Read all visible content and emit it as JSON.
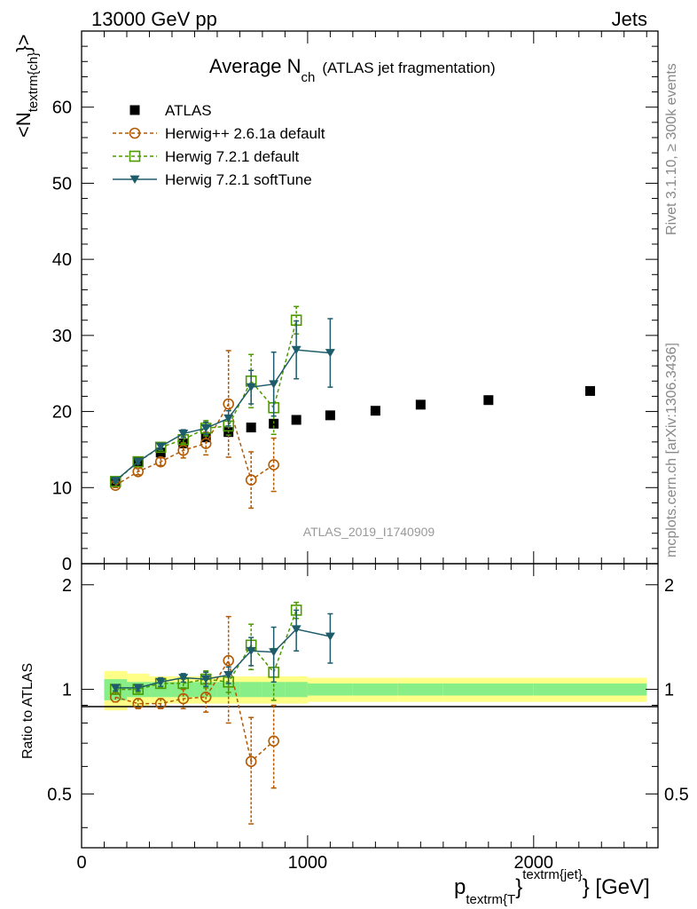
{
  "header": {
    "left": "13000 GeV pp",
    "right": "Jets",
    "rivet": "Rivet 3.1.10, ≥ 300k events",
    "mcplots": "mcplots.cern.ch [arXiv:1306.3436]",
    "analysis": "ATLAS_2019_I1740909"
  },
  "chart_data": {
    "type": "scatter",
    "title": "Average N",
    "title_sub": "ch",
    "title_extra": "(ATLAS jet fragmentation)",
    "ylabel_main_lt": "<N",
    "ylabel_main_sub": "textrm{ch}",
    "ylabel_main_gt": "}>",
    "ylabel_ratio": "Ratio to ATLAS",
    "xlabel_p": "p",
    "xlabel_sub": "textrm{T",
    "xlabel_brace": "}",
    "xlabel_sup": "textrm{jet}",
    "xlabel_unit": "} [GeV]",
    "xlim": [
      0,
      2550
    ],
    "ylim_main": [
      0,
      70
    ],
    "ylim_ratio": [
      0.35,
      2.3
    ],
    "xticks": [
      {
        "value": 0,
        "label": "0"
      },
      {
        "value": 1000,
        "label": "1000"
      },
      {
        "value": 2000,
        "label": "2000"
      }
    ],
    "yticks_main": [
      {
        "value": 0,
        "label": "0"
      },
      {
        "value": 10,
        "label": "10"
      },
      {
        "value": 20,
        "label": "20"
      },
      {
        "value": 30,
        "label": "30"
      },
      {
        "value": 40,
        "label": "40"
      },
      {
        "value": 50,
        "label": "50"
      },
      {
        "value": 60,
        "label": "60"
      }
    ],
    "yticks_ratio": [
      {
        "value": 0.5,
        "label": "0.5"
      },
      {
        "value": 1,
        "label": "1"
      },
      {
        "value": 2,
        "label": "2"
      }
    ],
    "bins": [
      [
        100,
        200
      ],
      [
        200,
        300
      ],
      [
        300,
        400
      ],
      [
        400,
        500
      ],
      [
        500,
        600
      ],
      [
        600,
        700
      ],
      [
        700,
        800
      ],
      [
        800,
        900
      ],
      [
        900,
        1000
      ],
      [
        1000,
        1200
      ],
      [
        1200,
        1400
      ],
      [
        1400,
        1600
      ],
      [
        1600,
        2000
      ],
      [
        2000,
        2500
      ]
    ],
    "band_outer": [
      0.13,
      0.11,
      0.09,
      0.09,
      0.09,
      0.09,
      0.09,
      0.09,
      0.09,
      0.08,
      0.08,
      0.08,
      0.08,
      0.08
    ],
    "band_inner": [
      0.07,
      0.05,
      0.05,
      0.05,
      0.05,
      0.05,
      0.05,
      0.05,
      0.05,
      0.04,
      0.04,
      0.04,
      0.04,
      0.04
    ],
    "series": [
      {
        "name": "ATLAS",
        "color": "#000000",
        "marker": "square-filled",
        "x": [
          150,
          250,
          350,
          450,
          550,
          650,
          750,
          850,
          950,
          1100,
          1300,
          1500,
          1800,
          2250
        ],
        "y": [
          10.8,
          13.3,
          14.6,
          15.8,
          16.6,
          17.3,
          17.9,
          18.4,
          18.9,
          19.5,
          20.1,
          20.9,
          21.5,
          22.7
        ],
        "ratio": [
          1,
          1,
          1,
          1,
          1,
          1,
          1,
          1,
          1,
          1,
          1,
          1,
          1,
          1
        ]
      },
      {
        "name": "Herwig++ 2.6.1a default",
        "color": "#b35900",
        "marker": "circle-open",
        "line": "dashed",
        "x": [
          150,
          250,
          350,
          450,
          550,
          650,
          750,
          850
        ],
        "y": [
          10.3,
          12.1,
          13.4,
          14.9,
          15.8,
          21.0,
          11.0,
          13.0
        ],
        "yerr": [
          0.3,
          0.4,
          0.5,
          1.0,
          1.5,
          7.0,
          3.7,
          3.5
        ],
        "ratio": [
          0.95,
          0.91,
          0.91,
          0.94,
          0.95,
          1.21,
          0.62,
          0.71
        ],
        "ratio_err": [
          0.03,
          0.03,
          0.03,
          0.06,
          0.09,
          0.41,
          0.21,
          0.19
        ]
      },
      {
        "name": "Herwig 7.2.1 default",
        "color": "#4d9900",
        "marker": "square-open",
        "line": "dashed",
        "x": [
          150,
          250,
          350,
          450,
          550,
          650,
          750,
          850,
          950
        ],
        "y": [
          10.8,
          13.4,
          15.3,
          16.3,
          17.8,
          18.1,
          24.0,
          20.5,
          32.0
        ],
        "yerr": [
          0.2,
          0.3,
          0.4,
          0.5,
          1.0,
          1.2,
          3.5,
          3.5,
          1.8
        ],
        "ratio": [
          1.0,
          1.0,
          1.04,
          1.04,
          1.07,
          1.05,
          1.34,
          1.12,
          1.69
        ],
        "ratio_err": [
          0.02,
          0.02,
          0.03,
          0.03,
          0.06,
          0.07,
          0.2,
          0.19,
          0.09
        ]
      },
      {
        "name": "Herwig 7.2.1 softTune",
        "color": "#1f5c6b",
        "marker": "triangle-down",
        "line": "solid",
        "x": [
          150,
          250,
          350,
          450,
          550,
          650,
          750,
          850,
          950,
          1100
        ],
        "y": [
          10.9,
          13.4,
          15.4,
          17.1,
          17.8,
          19.1,
          23.2,
          23.6,
          28.1,
          27.7
        ],
        "yerr": [
          0.2,
          0.3,
          0.4,
          0.5,
          0.8,
          1.0,
          2.2,
          4.2,
          3.8,
          4.5
        ],
        "ratio": [
          1.01,
          1.01,
          1.05,
          1.08,
          1.07,
          1.1,
          1.29,
          1.28,
          1.49,
          1.42
        ],
        "ratio_err": [
          0.02,
          0.02,
          0.03,
          0.03,
          0.05,
          0.06,
          0.12,
          0.23,
          0.2,
          0.23
        ]
      }
    ]
  }
}
